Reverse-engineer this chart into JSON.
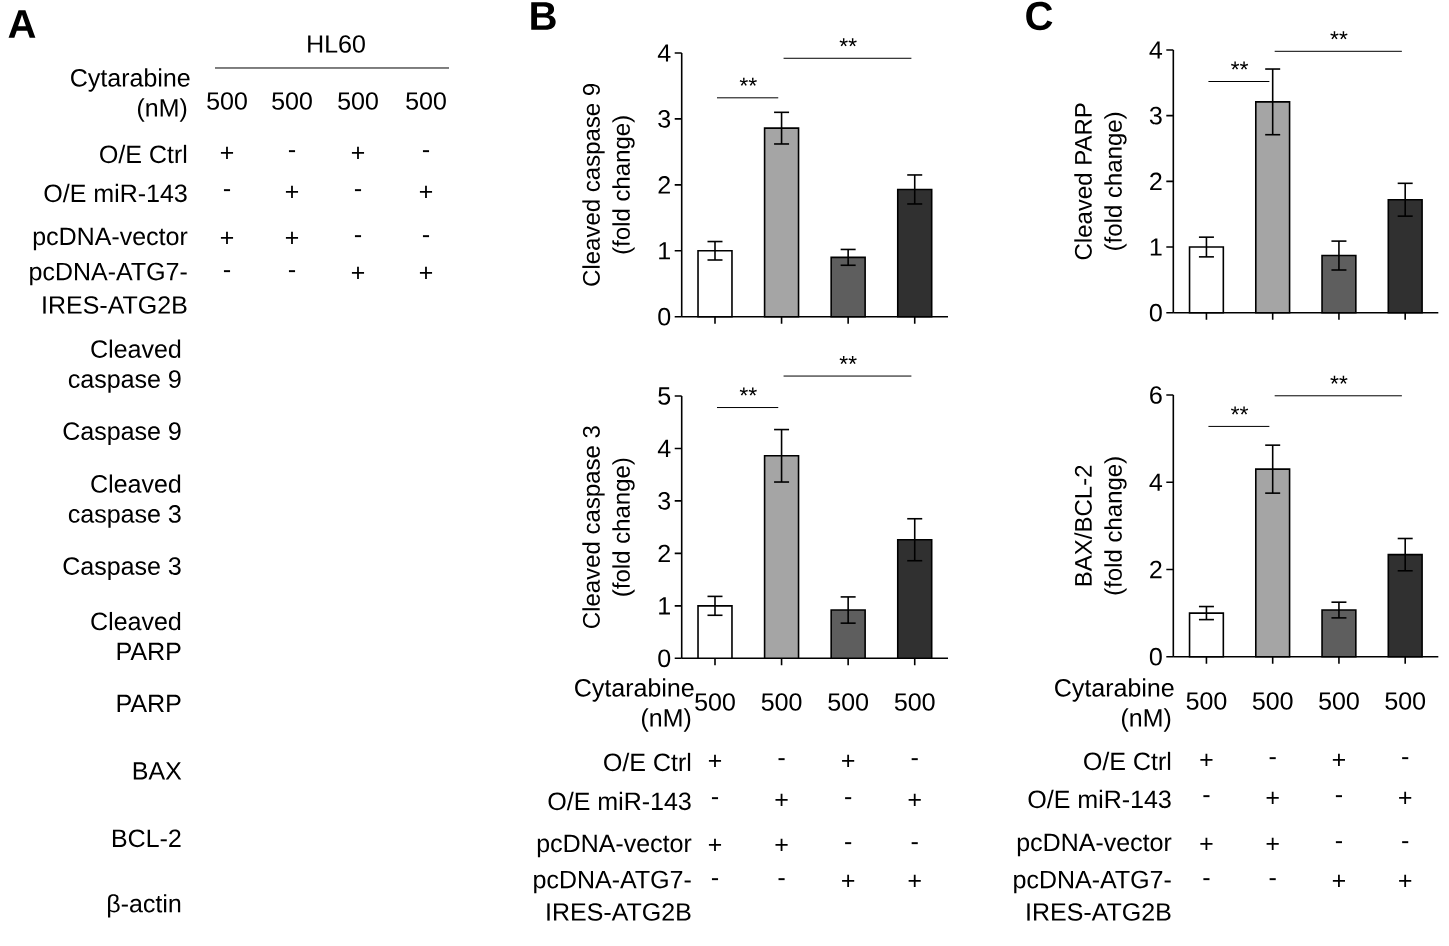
{
  "chart_data": [
    {
      "type": "other",
      "title": "A",
      "subtitle": "HL60",
      "annotations": [
        "Cytarabine (nM)",
        "500",
        "500",
        "500",
        "500",
        "O/E Ctrl",
        "+",
        "-",
        "+",
        "-",
        "O/E miR-143",
        "-",
        "+",
        "-",
        "+",
        "pcDNA-vector",
        "+",
        "+",
        "-",
        "-",
        "pcDNA-ATG7-",
        "IRES-ATG2B",
        "-",
        "-",
        "+",
        "+"
      ]
    },
    {
      "type": "other",
      "annotations": [
        "Cleaved caspase 9",
        "Caspase 9",
        "Cleaved caspase 3",
        "Caspase 3",
        "Cleaved PARP",
        "PARP",
        "BAX",
        "BCL-2",
        "β-actin"
      ]
    },
    {
      "type": "bar",
      "title": "B",
      "ylabel": "Cleaved caspase 9 (fold change)",
      "categories": [
        null,
        null,
        null,
        null
      ],
      "values": [
        1.0,
        2.86,
        0.9,
        1.93
      ],
      "errors": [
        0.14,
        0.24,
        0.12,
        0.22
      ],
      "colors": [
        "#ffffff",
        "#a5a5a5",
        "#5e5e5e",
        "#303030"
      ],
      "ylim": [
        0,
        4
      ],
      "yticks": [
        0,
        1,
        2,
        3,
        4
      ],
      "tick_labels": "y",
      "annotations": [
        "**",
        "**"
      ]
    },
    {
      "type": "bar",
      "ylabel": "Cleaved caspase 3 (fold change)",
      "categories": [
        null,
        null,
        null,
        null
      ],
      "values": [
        1.0,
        3.86,
        0.92,
        2.26
      ],
      "errors": [
        0.18,
        0.5,
        0.25,
        0.4
      ],
      "colors": [
        "#ffffff",
        "#a5a5a5",
        "#5e5e5e",
        "#303030"
      ],
      "ylim": [
        0,
        5
      ],
      "yticks": [
        0,
        1,
        2,
        3,
        4,
        5
      ],
      "tick_labels": "y",
      "annotations": [
        "**",
        "**"
      ]
    },
    {
      "type": "other",
      "annotations": [
        "Cytarabine (nM)",
        "500",
        "500",
        "500",
        "500",
        "O/E Ctrl",
        "+",
        "-",
        "+",
        "-",
        "O/E miR-143",
        "-",
        "+",
        "-",
        "+",
        "pcDNA-vector",
        "+",
        "+",
        "-",
        "-",
        "pcDNA-ATG7-",
        "IRES-ATG2B",
        "-",
        "-",
        "+",
        "+"
      ]
    },
    {
      "type": "bar",
      "title": "C",
      "ylabel": "Cleaved PARP (fold change)",
      "categories": [
        null,
        null,
        null,
        null
      ],
      "values": [
        1.0,
        3.21,
        0.87,
        1.72
      ],
      "errors": [
        0.15,
        0.5,
        0.22,
        0.25
      ],
      "colors": [
        "#ffffff",
        "#a5a5a5",
        "#5e5e5e",
        "#303030"
      ],
      "ylim": [
        0,
        4
      ],
      "yticks": [
        0,
        1,
        2,
        3,
        4
      ],
      "tick_labels": "y",
      "annotations": [
        "**",
        "**"
      ]
    },
    {
      "type": "bar",
      "ylabel": "BAX/BCL-2 (fold change)",
      "categories": [
        null,
        null,
        null,
        null
      ],
      "values": [
        1.0,
        4.3,
        1.07,
        2.34
      ],
      "errors": [
        0.15,
        0.55,
        0.18,
        0.37
      ],
      "colors": [
        "#ffffff",
        "#a5a5a5",
        "#5e5e5e",
        "#303030"
      ],
      "ylim": [
        0,
        6
      ],
      "yticks": [
        0,
        2,
        4,
        6
      ],
      "tick_labels": "y",
      "annotations": [
        "**",
        "**"
      ]
    },
    {
      "type": "other",
      "annotations": [
        "Cytarabine (nM)",
        "500",
        "500",
        "500",
        "500",
        "O/E Ctrl",
        "+",
        "-",
        "+",
        "-",
        "O/E miR-143",
        "-",
        "+",
        "-",
        "+",
        "pcDNA-vector",
        "+",
        "+",
        "-",
        "-",
        "pcDNA-ATG7-",
        "IRES-ATG2B",
        "-",
        "-",
        "+",
        "+"
      ]
    }
  ]
}
